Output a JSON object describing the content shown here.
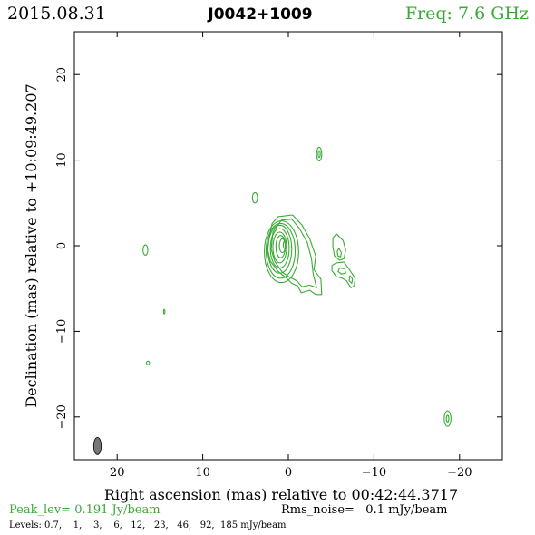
{
  "header": {
    "date": "2015.08.31",
    "source": "J0042+1009",
    "freq": "Freq: 7.6 GHz"
  },
  "footer": {
    "peak": "Peak_lev=  0.191 Jy/beam",
    "rms": "Rms_noise=   0.1 mJy/beam",
    "levels": "Levels: 0.7,    1,    3,    6,   12,   23,   46,   92,  185 mJy/beam"
  },
  "colors": {
    "contour": "#3aaa35",
    "frame": "#000000",
    "beam": "#777777"
  },
  "chart_data": {
    "type": "contour",
    "xlabel": "Right ascension (mas) relative to 00:42:44.3717",
    "ylabel": "Declination (mas) relative to +10:09:49.207",
    "xlim": [
      25,
      -25
    ],
    "ylim": [
      -25,
      25
    ],
    "x_ticks": [
      20,
      10,
      0,
      -10,
      -20
    ],
    "x_tick_labels": [
      "20",
      "10",
      "0",
      "−10",
      "−20"
    ],
    "y_ticks": [
      20,
      10,
      0,
      -10,
      -20
    ],
    "y_tick_labels": [
      "20",
      "10",
      "0",
      "−10",
      "−20"
    ],
    "levels_mJy": [
      0.7,
      1,
      3,
      6,
      12,
      23,
      46,
      92,
      185
    ],
    "beam": {
      "x": 22.3,
      "y": -23.4,
      "bmaj": 2.0,
      "bmin": 0.9,
      "pa": 0
    },
    "core_rings": [
      {
        "cx": 0.8,
        "cy": -0.7,
        "rx": 2.0,
        "ry": 3.6
      },
      {
        "cx": 0.9,
        "cy": -0.6,
        "rx": 1.7,
        "ry": 3.2
      },
      {
        "cx": 1.0,
        "cy": -0.4,
        "rx": 1.4,
        "ry": 2.8
      },
      {
        "cx": 1.0,
        "cy": -0.3,
        "rx": 1.1,
        "ry": 2.3
      },
      {
        "cx": 1.0,
        "cy": -0.2,
        "rx": 0.8,
        "ry": 1.8
      },
      {
        "cx": 0.9,
        "cy": -0.1,
        "rx": 0.55,
        "ry": 1.3
      },
      {
        "cx": 0.7,
        "cy": 0.0,
        "rx": 0.35,
        "ry": 0.8
      },
      {
        "cx": 0.4,
        "cy": 0.1,
        "rx": 0.2,
        "ry": 0.45
      }
    ],
    "core_outer": [
      [
        1.2,
        3.4
      ],
      [
        -0.5,
        3.6
      ],
      [
        -1.6,
        2.4
      ],
      [
        -2.5,
        0.8
      ],
      [
        -3.2,
        -1.2
      ],
      [
        -3.0,
        -2.8
      ],
      [
        -3.8,
        -3.9
      ],
      [
        -3.9,
        -5.7
      ],
      [
        -3.2,
        -5.7
      ],
      [
        -2.5,
        -5.2
      ],
      [
        -1.5,
        -5.5
      ],
      [
        -1.1,
        -4.7
      ],
      [
        -0.4,
        -4.4
      ],
      [
        0.2,
        -3.8
      ],
      [
        1.2,
        -3.0
      ],
      [
        2.1,
        -1.8
      ],
      [
        2.4,
        -0.5
      ],
      [
        2.2,
        1.2
      ],
      [
        1.9,
        2.6
      ]
    ],
    "core_second": [
      [
        0.8,
        3.0
      ],
      [
        -0.4,
        3.1
      ],
      [
        -1.3,
        2.0
      ],
      [
        -2.2,
        0.4
      ],
      [
        -2.7,
        -1.5
      ],
      [
        -2.9,
        -3.3
      ],
      [
        -3.3,
        -4.9
      ],
      [
        -2.5,
        -4.6
      ],
      [
        -1.6,
        -4.8
      ],
      [
        -1.0,
        -4.1
      ],
      [
        -0.2,
        -3.7
      ],
      [
        0.7,
        -3.1
      ],
      [
        1.6,
        -1.8
      ],
      [
        2.0,
        -0.4
      ],
      [
        1.8,
        1.6
      ]
    ],
    "jet_components": [
      {
        "outline": [
          [
            -5.6,
            1.4
          ],
          [
            -6.4,
            0.6
          ],
          [
            -6.7,
            -0.5
          ],
          [
            -6.5,
            -1.5
          ],
          [
            -6.0,
            -1.7
          ],
          [
            -5.4,
            -1.2
          ],
          [
            -5.2,
            -0.2
          ],
          [
            -5.2,
            0.9
          ]
        ]
      },
      {
        "outline": [
          [
            -5.9,
            -0.3
          ],
          [
            -6.2,
            -0.8
          ],
          [
            -6.1,
            -1.3
          ],
          [
            -5.8,
            -1.2
          ],
          [
            -5.7,
            -0.7
          ]
        ]
      },
      {
        "outline": [
          [
            -5.6,
            -2.0
          ],
          [
            -6.5,
            -1.9
          ],
          [
            -7.0,
            -2.6
          ],
          [
            -7.4,
            -3.2
          ],
          [
            -7.8,
            -3.8
          ],
          [
            -7.7,
            -4.7
          ],
          [
            -7.3,
            -4.9
          ],
          [
            -6.8,
            -4.1
          ],
          [
            -6.3,
            -3.8
          ],
          [
            -5.6,
            -3.6
          ],
          [
            -5.1,
            -2.9
          ],
          [
            -5.1,
            -2.3
          ]
        ]
      },
      {
        "outline": [
          [
            -6.0,
            -2.6
          ],
          [
            -6.6,
            -2.7
          ],
          [
            -6.7,
            -3.2
          ],
          [
            -6.2,
            -3.3
          ],
          [
            -5.8,
            -3.0
          ]
        ]
      },
      {
        "outline": [
          [
            -7.2,
            -3.5
          ],
          [
            -7.5,
            -3.9
          ],
          [
            -7.4,
            -4.4
          ],
          [
            -7.1,
            -4.1
          ]
        ]
      }
    ],
    "small_blobs": [
      {
        "cx": -3.6,
        "cy": 10.7,
        "rx": 0.3,
        "ry": 0.8
      },
      {
        "cx": -3.6,
        "cy": 10.7,
        "rx": 0.12,
        "ry": 0.4
      },
      {
        "cx": 3.9,
        "cy": 5.6,
        "rx": 0.3,
        "ry": 0.6
      },
      {
        "cx": 16.7,
        "cy": -0.5,
        "rx": 0.28,
        "ry": 0.6
      },
      {
        "cx": 14.5,
        "cy": -7.7,
        "rx": 0.08,
        "ry": 0.25
      },
      {
        "cx": 16.4,
        "cy": -13.7,
        "rx": 0.18,
        "ry": 0.2
      },
      {
        "cx": -18.6,
        "cy": -20.2,
        "rx": 0.4,
        "ry": 0.9
      },
      {
        "cx": -18.6,
        "cy": -20.2,
        "rx": 0.15,
        "ry": 0.4
      }
    ]
  }
}
